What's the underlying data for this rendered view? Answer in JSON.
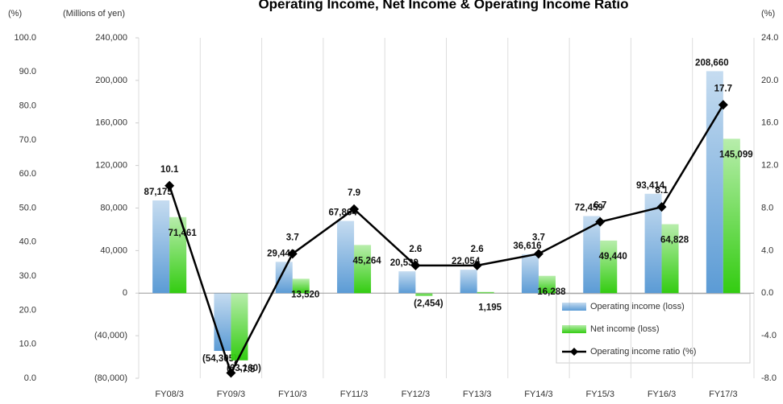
{
  "chart_data": {
    "type": "bar",
    "title": "Operating Income, Net Income & Operating Income Ratio",
    "y_label": "(Millions of yen)",
    "y2_label": "(%)",
    "y3_label": "(%)",
    "categories": [
      "FY08/3",
      "FY09/3",
      "FY10/3",
      "FY11/3",
      "FY12/3",
      "FY13/3",
      "FY14/3",
      "FY15/3",
      "FY16/3",
      "FY17/3"
    ],
    "series": [
      {
        "name": "Operating income (loss)",
        "color": "#5b9bd5",
        "values": [
          87175,
          -54305,
          29443,
          67864,
          20539,
          22054,
          36616,
          72459,
          93414,
          208660
        ],
        "value_labels": [
          "87,175",
          "(54,305)",
          "29,443",
          "67,864",
          "20,539",
          "22,054",
          "36,616",
          "72,459",
          "93,414",
          "208,660"
        ]
      },
      {
        "name": "Net income (loss)",
        "color": "#33cc11",
        "values": [
          71461,
          -63160,
          13520,
          45264,
          -2454,
          1195,
          16288,
          49440,
          64828,
          145099
        ],
        "value_labels": [
          "71,461",
          "(63,160)",
          "13,520",
          "45,264",
          "(2,454)",
          "1,195",
          "16,288",
          "49,440",
          "64,828",
          "145,099"
        ]
      },
      {
        "name": "Operating income ratio (%)",
        "color": "#000000",
        "type": "line",
        "axis": "y2",
        "values": [
          10.1,
          -7.5,
          3.7,
          7.9,
          2.6,
          2.6,
          3.7,
          6.7,
          8.1,
          17.7
        ]
      }
    ],
    "ylim": [
      -80000,
      240000
    ],
    "yticks": [
      {
        "value": -80000,
        "label": "(80,000)"
      },
      {
        "value": -40000,
        "label": "(40,000)"
      },
      0,
      {
        "value": 40000,
        "label": "40,000"
      },
      {
        "value": 80000,
        "label": "80,000"
      },
      {
        "value": 120000,
        "label": "120,000"
      },
      {
        "value": 160000,
        "label": "160,000"
      },
      {
        "value": 200000,
        "label": "200,000"
      },
      {
        "value": 240000,
        "label": "240,000"
      }
    ],
    "y2lim": [
      -8,
      24
    ],
    "y2ticks": [
      {
        "value": -8,
        "label": "-8.0"
      },
      {
        "value": -4,
        "label": "-4.0"
      },
      {
        "value": 0,
        "label": "0.0"
      },
      {
        "value": 4,
        "label": "4.0"
      },
      {
        "value": 8,
        "label": "8.0"
      },
      {
        "value": 12,
        "label": "12.0"
      },
      {
        "value": 16,
        "label": "16.0"
      },
      {
        "value": 20,
        "label": "20.0"
      },
      {
        "value": 24,
        "label": "24.0"
      }
    ],
    "y3lim": [
      0,
      100
    ],
    "y3ticks": [
      {
        "value": 0,
        "label": "0.0"
      },
      {
        "value": 10,
        "label": "10.0"
      },
      {
        "value": 20,
        "label": "20.0"
      },
      {
        "value": 30,
        "label": "30.0"
      },
      {
        "value": 40,
        "label": "40.0"
      },
      {
        "value": 50,
        "label": "50.0"
      },
      {
        "value": 60,
        "label": "60.0"
      },
      {
        "value": 70,
        "label": "70.0"
      },
      {
        "value": 80,
        "label": "80.0"
      },
      {
        "value": 90,
        "label": "90.0"
      },
      {
        "value": 100,
        "label": "100.0"
      }
    ],
    "legend": "lower right"
  }
}
